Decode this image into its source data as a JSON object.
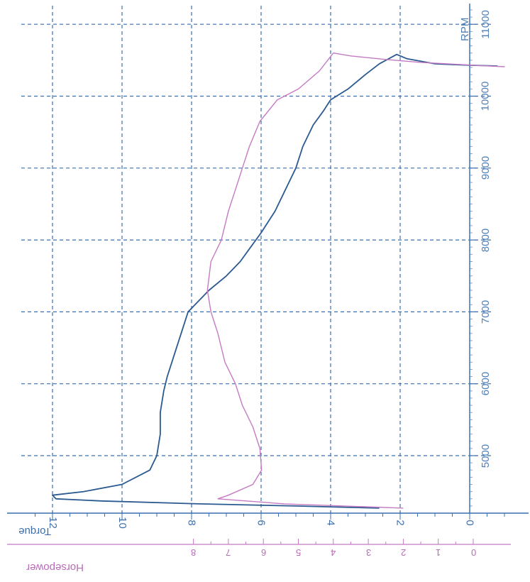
{
  "chart_data": {
    "type": "line",
    "orientation": "rotated-90",
    "rpm_axis": {
      "label": "RPM",
      "ticks": [
        5000,
        6000,
        7000,
        8000,
        9000,
        10000,
        11000
      ],
      "tick_labels": [
        "5000",
        "6000",
        "7000",
        "8000",
        "9000",
        "10000",
        "11000"
      ],
      "range": [
        4200,
        11250
      ]
    },
    "torque_axis": {
      "label": "Torque",
      "ticks": [
        0,
        2,
        4,
        6,
        8,
        10,
        12
      ],
      "tick_labels": [
        "0",
        "2",
        "4",
        "6",
        "8",
        "10",
        "12"
      ],
      "range": [
        -1.1,
        12.8
      ]
    },
    "horsepower_axis": {
      "label": "Horsepower",
      "ticks": [
        0,
        1,
        2,
        3,
        4,
        5,
        6,
        7,
        8
      ],
      "tick_labels": [
        "0",
        "1",
        "2",
        "3",
        "4",
        "5",
        "6",
        "7",
        "8"
      ]
    },
    "grid": true,
    "series": [
      {
        "name": "Torque",
        "axis": "torque",
        "color": "#2a5a90",
        "points": [
          [
            10420,
            -0.8
          ],
          [
            10430,
            0.0
          ],
          [
            10450,
            1.0
          ],
          [
            10520,
            1.8
          ],
          [
            10580,
            2.1
          ],
          [
            10450,
            2.6
          ],
          [
            10300,
            3.0
          ],
          [
            10100,
            3.5
          ],
          [
            9950,
            4.0
          ],
          [
            9800,
            4.2
          ],
          [
            9600,
            4.5
          ],
          [
            9300,
            4.8
          ],
          [
            9000,
            5.0
          ],
          [
            8700,
            5.3
          ],
          [
            8400,
            5.6
          ],
          [
            8100,
            6.0
          ],
          [
            7900,
            6.3
          ],
          [
            7700,
            6.6
          ],
          [
            7500,
            7.0
          ],
          [
            7300,
            7.5
          ],
          [
            7000,
            8.1
          ],
          [
            6700,
            8.3
          ],
          [
            6400,
            8.5
          ],
          [
            6100,
            8.7
          ],
          [
            5900,
            8.8
          ],
          [
            5600,
            8.9
          ],
          [
            5300,
            8.9
          ],
          [
            5000,
            9.0
          ],
          [
            4800,
            9.2
          ],
          [
            4600,
            10.0
          ],
          [
            4500,
            11.1
          ],
          [
            4450,
            12.0
          ],
          [
            4400,
            11.9
          ],
          [
            4370,
            10.6
          ],
          [
            4330,
            7.8
          ],
          [
            4300,
            5.0
          ],
          [
            4270,
            2.6
          ]
        ]
      },
      {
        "name": "Horsepower",
        "axis": "horsepower",
        "color": "#c47ac4",
        "points": [
          [
            10410,
            -0.9
          ],
          [
            10430,
            0.0
          ],
          [
            10470,
            1.5
          ],
          [
            10510,
            2.5
          ],
          [
            10560,
            3.5
          ],
          [
            10600,
            4.0
          ],
          [
            10350,
            4.4
          ],
          [
            10100,
            5.0
          ],
          [
            9950,
            5.6
          ],
          [
            9650,
            6.1
          ],
          [
            9300,
            6.4
          ],
          [
            9000,
            6.6
          ],
          [
            8700,
            6.8
          ],
          [
            8400,
            7.0
          ],
          [
            8000,
            7.2
          ],
          [
            7700,
            7.5
          ],
          [
            7300,
            7.6
          ],
          [
            7000,
            7.5
          ],
          [
            6700,
            7.3
          ],
          [
            6300,
            7.1
          ],
          [
            6000,
            6.8
          ],
          [
            5700,
            6.6
          ],
          [
            5400,
            6.3
          ],
          [
            5100,
            6.1
          ],
          [
            4800,
            6.05
          ],
          [
            4600,
            6.3
          ],
          [
            4450,
            7.0
          ],
          [
            4400,
            7.3
          ],
          [
            4330,
            5.4
          ],
          [
            4270,
            2.0
          ]
        ]
      }
    ]
  }
}
